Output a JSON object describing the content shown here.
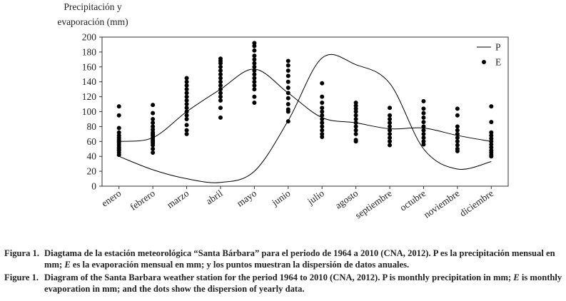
{
  "chart_data": {
    "type": "line",
    "ylabel": [
      "Precipitación y",
      "evaporación (mm)"
    ],
    "categories": [
      "enero",
      "febrero",
      "marzo",
      "abril",
      "mayo",
      "junio",
      "julio",
      "agosto",
      "septiembre",
      "octubre",
      "noviembre",
      "diciembre"
    ],
    "series": [
      {
        "name": "P",
        "color": "#000000",
        "values": [
          40,
          22,
          10,
          5,
          20,
          88,
          172,
          163,
          138,
          50,
          23,
          33
        ]
      },
      {
        "name": "E",
        "color": "#000000",
        "values": [
          60,
          65,
          100,
          130,
          157,
          125,
          92,
          85,
          77,
          78,
          68,
          60
        ],
        "points": [
          [
            107,
            95,
            78,
            72,
            68,
            65,
            62,
            60,
            58,
            55,
            52,
            50,
            48,
            45,
            42
          ],
          [
            109,
            98,
            90,
            85,
            80,
            76,
            72,
            70,
            68,
            65,
            62,
            60,
            58,
            55,
            50,
            45
          ],
          [
            145,
            140,
            135,
            130,
            125,
            120,
            115,
            110,
            105,
            100,
            95,
            90,
            82,
            75,
            70
          ],
          [
            171,
            168,
            165,
            160,
            155,
            150,
            145,
            140,
            135,
            130,
            125,
            120,
            115,
            105,
            92
          ],
          [
            192,
            188,
            182,
            175,
            170,
            165,
            160,
            155,
            150,
            145,
            140,
            135,
            130,
            120,
            112
          ],
          [
            168,
            162,
            155,
            148,
            140,
            132,
            125,
            118,
            110,
            103,
            100,
            87
          ],
          [
            138,
            120,
            112,
            105,
            100,
            95,
            90,
            85,
            80,
            75,
            70,
            66
          ],
          [
            112,
            108,
            104,
            100,
            95,
            90,
            85,
            80,
            75,
            70,
            62,
            60
          ],
          [
            105,
            95,
            90,
            85,
            80,
            75,
            70,
            65,
            60,
            55
          ],
          [
            114,
            104,
            98,
            92,
            86,
            80,
            75,
            70,
            65,
            60,
            56
          ],
          [
            104,
            95,
            80,
            75,
            70,
            65,
            60,
            55,
            50,
            47
          ],
          [
            107,
            86,
            72,
            68,
            64,
            60,
            56,
            52,
            48,
            45,
            42,
            40
          ]
        ]
      }
    ],
    "ylim": [
      0,
      200
    ],
    "yticks": [
      0,
      20,
      40,
      60,
      80,
      100,
      120,
      140,
      160,
      180,
      200
    ],
    "legend": "top-right"
  },
  "caption": [
    {
      "label": "Figura 1.",
      "segments": [
        "Diagtama de la estación meteorológica “Santa Bárbara” para el periodo de 1964 a 2010 (CNA, 2012). P es la precipitación mensual en mm; ",
        "E",
        " es la evaporación mensual en mm; y los puntos muestran la dispersión de datos anuales."
      ]
    },
    {
      "label": "Figure 1.",
      "segments": [
        "Diagram of the Santa Barbara weather station for the period 1964 to 2010 (CNA, 2012). P is monthly precipitation in mm; ",
        "E",
        " is monthly evaporation in mm; and the dots show the dispersion of yearly data."
      ]
    }
  ]
}
